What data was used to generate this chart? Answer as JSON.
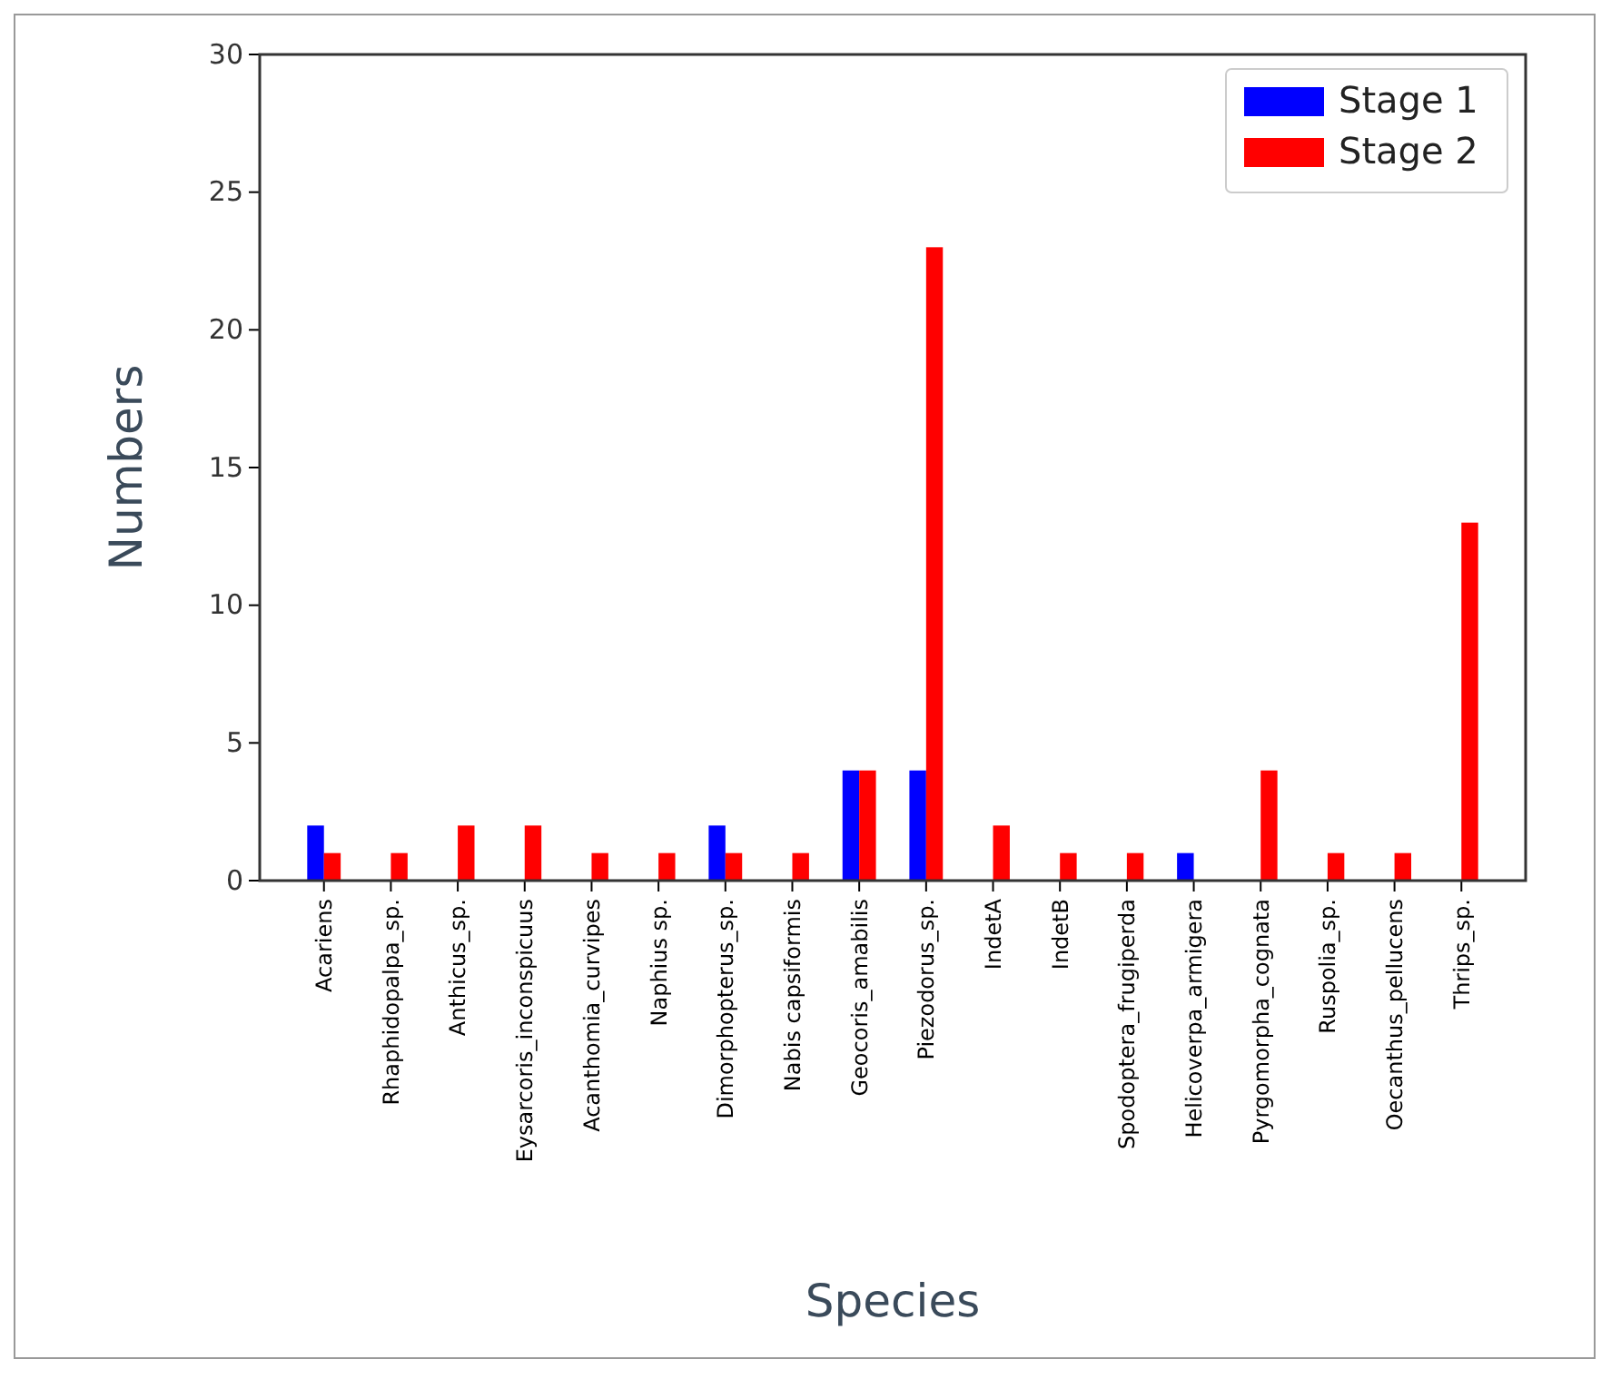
{
  "chart_data": {
    "type": "bar",
    "xlabel": "Species",
    "ylabel": "Numbers",
    "categories": [
      "Acariens",
      "Rhaphidopalpa_sp.",
      "Anthicus_sp.",
      "Eysarcoris_inconspicuus",
      "Acanthomia_curvipes",
      "Naphius sp.",
      "Dimorphopterus_sp.",
      "Nabis capsiformis",
      "Geocoris_amabilis",
      "Piezodorus_sp.",
      "IndetA",
      "IndetB",
      "Spodoptera_frugiperda",
      "Helicoverpa_armigera",
      "Pyrgomorpha_cognata",
      "Ruspolia_sp.",
      "Oecanthus_pellucens",
      "Thrips_sp."
    ],
    "series": [
      {
        "name": "Stage 1",
        "color": "#0000ff",
        "values": [
          2,
          0,
          0,
          0,
          0,
          0,
          2,
          0,
          4,
          4,
          0,
          0,
          0,
          1,
          0,
          0,
          0,
          0
        ]
      },
      {
        "name": "Stage 2",
        "color": "#ff0000",
        "values": [
          1,
          1,
          2,
          2,
          1,
          1,
          1,
          1,
          4,
          23,
          2,
          1,
          1,
          0,
          4,
          1,
          1,
          13
        ]
      }
    ],
    "ylim": [
      0,
      30
    ],
    "yticks": [
      0,
      5,
      10,
      15,
      20,
      25,
      30
    ],
    "grid": false,
    "legend": "top right"
  }
}
